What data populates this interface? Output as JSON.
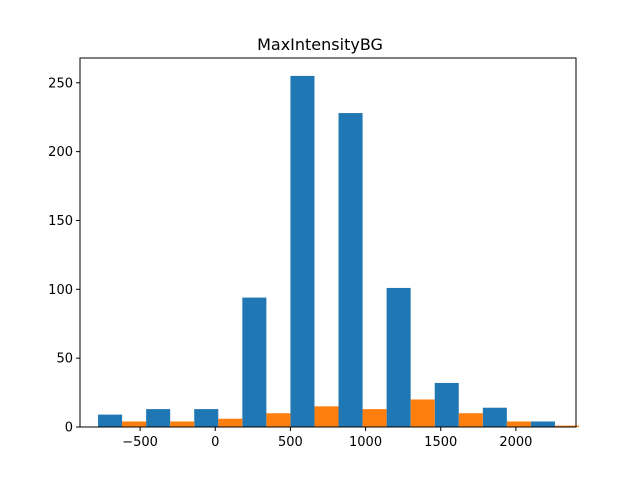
{
  "chart_data": {
    "type": "bar",
    "title": "MaxIntensityBG",
    "xlabel": "",
    "ylabel": "",
    "xlim": [
      -900,
      2400
    ],
    "ylim": [
      0,
      268
    ],
    "x_ticks": [
      -500,
      0,
      500,
      1000,
      1500,
      2000
    ],
    "x_tick_labels": [
      "−500",
      "0",
      "500",
      "1000",
      "1500",
      "2000"
    ],
    "y_ticks": [
      0,
      50,
      100,
      150,
      200,
      250
    ],
    "y_tick_labels": [
      "0",
      "50",
      "100",
      "150",
      "200",
      "250"
    ],
    "bin_edges": [
      -780,
      -460,
      -140,
      180,
      500,
      820,
      1140,
      1460,
      1780,
      2100,
      2420
    ],
    "series": [
      {
        "color": "#1f77b4",
        "values": [
          9,
          13,
          13,
          94,
          255,
          228,
          101,
          32,
          14,
          4
        ]
      },
      {
        "color": "#ff7f0e",
        "values": [
          4,
          4,
          6,
          10,
          15,
          13,
          20,
          10,
          4,
          1
        ]
      }
    ],
    "grid": false,
    "legend": "none"
  }
}
